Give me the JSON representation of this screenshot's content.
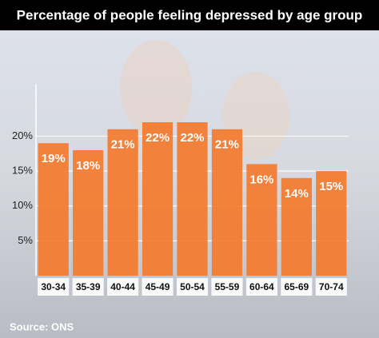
{
  "chart_data": {
    "type": "bar",
    "title": "Percentage of people feeling depressed by age group",
    "categories": [
      "30-34",
      "35-39",
      "40-44",
      "45-49",
      "50-54",
      "55-59",
      "60-64",
      "65-69",
      "70-74"
    ],
    "values": [
      19,
      18,
      21,
      22,
      22,
      21,
      16,
      14,
      15
    ],
    "value_labels": [
      "19%",
      "18%",
      "21%",
      "22%",
      "22%",
      "21%",
      "16%",
      "14%",
      "15%"
    ],
    "color": "#f47a2c",
    "ylim": [
      0,
      27.5
    ],
    "yticks": [
      {
        "value": 5,
        "label": "5%"
      },
      {
        "value": 10,
        "label": "10%"
      },
      {
        "value": 15,
        "label": "15%"
      },
      {
        "value": 20,
        "label": "20%"
      }
    ],
    "grid": true,
    "source": "Source: ONS"
  }
}
